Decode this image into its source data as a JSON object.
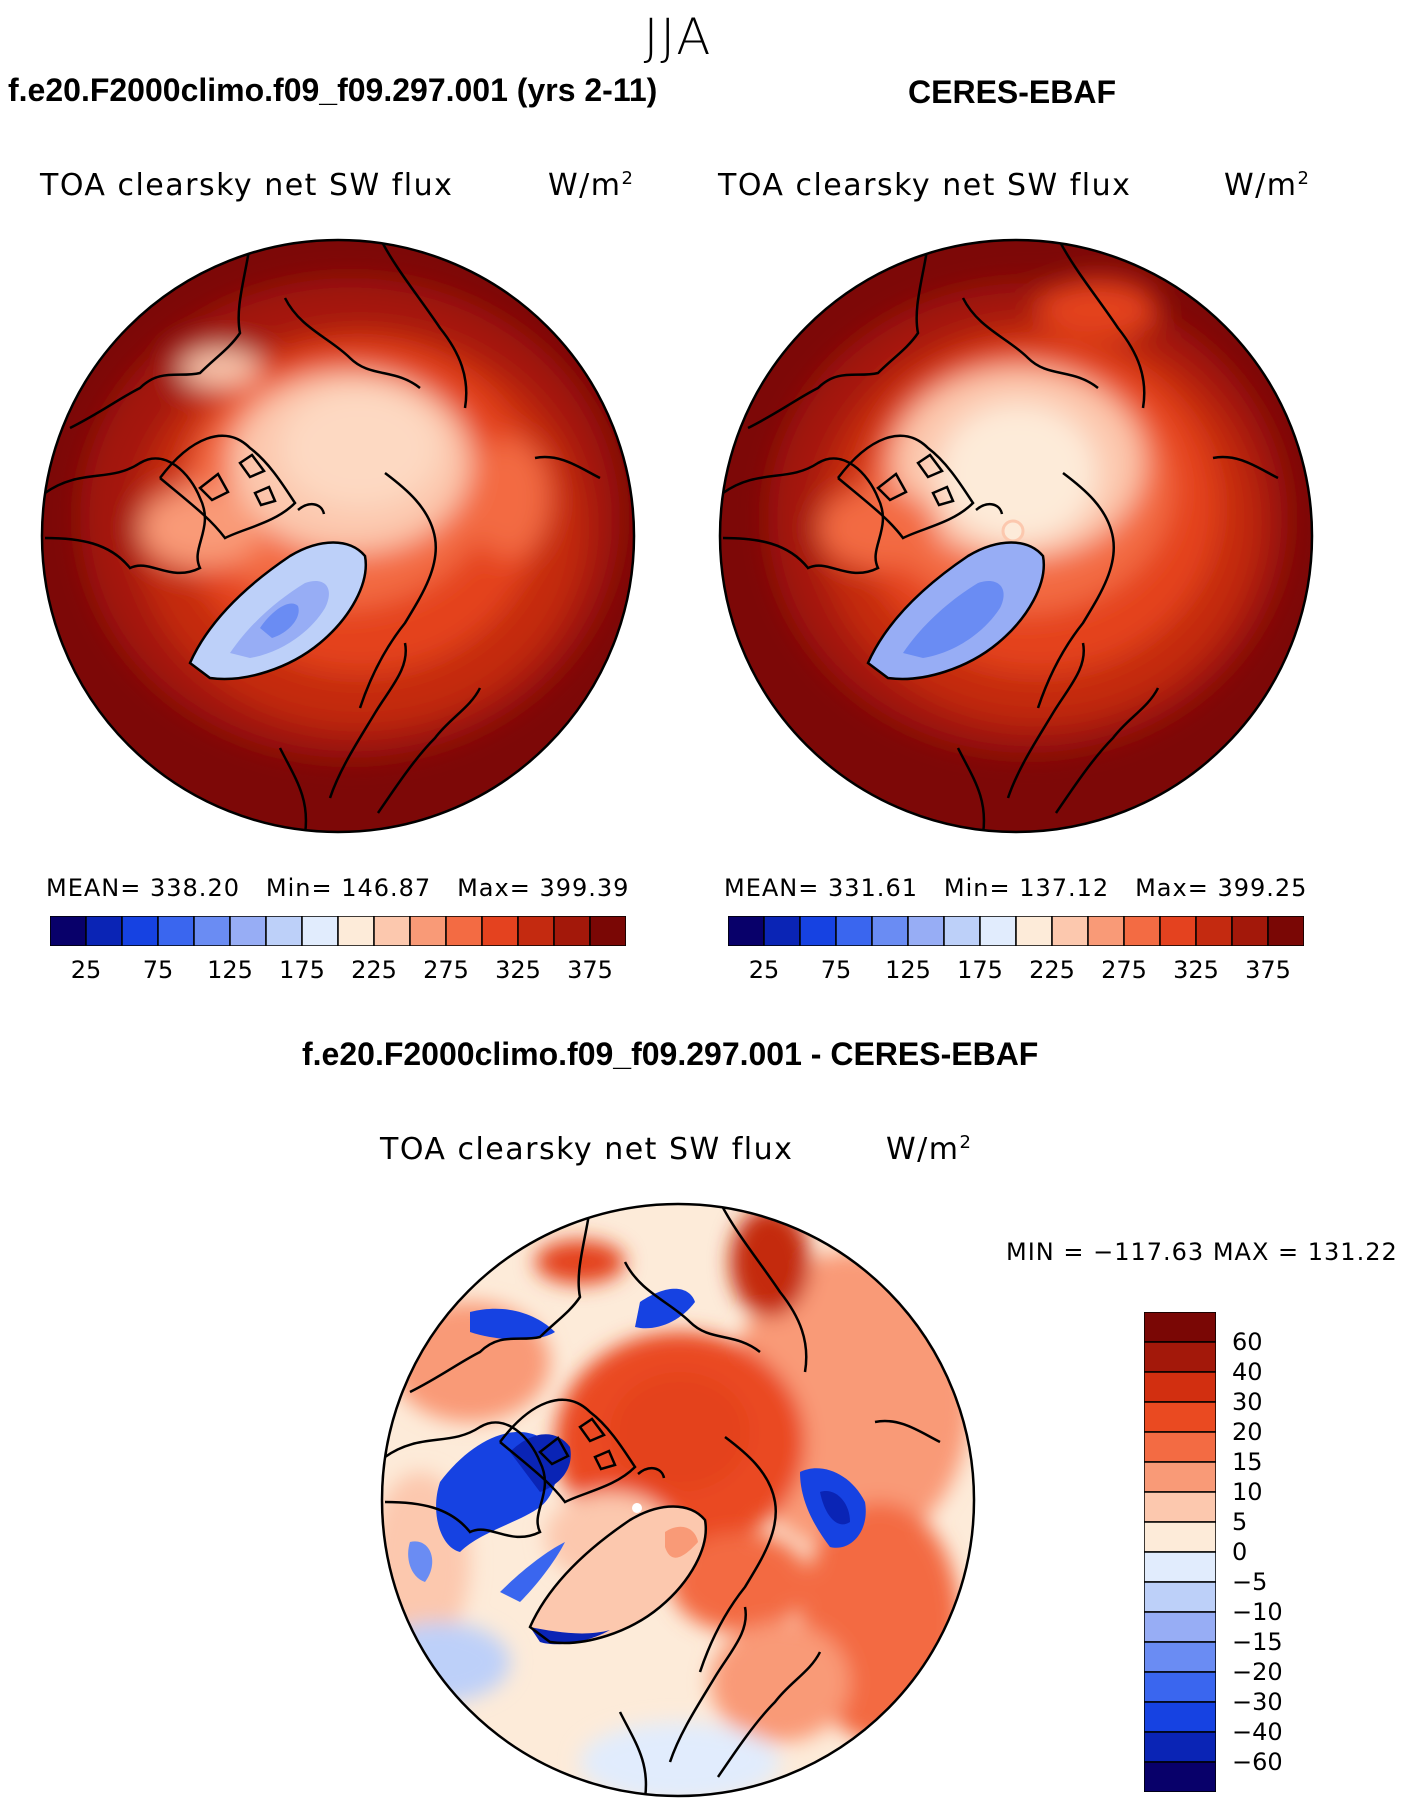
{
  "season": "JJA",
  "panel_left": {
    "case_title": "f.e20.F2000climo.f09_f09.297.001 (yrs 2-11)",
    "variable": "TOA clearsky net SW flux",
    "units": "W/m",
    "units_sup": "2",
    "stats": {
      "mean_label": "MEAN=",
      "mean": "338.20",
      "min_label": "Min=",
      "min": "146.87",
      "max_label": "Max=",
      "max": "399.39"
    }
  },
  "panel_right": {
    "case_title": "CERES-EBAF",
    "variable": "TOA clearsky net SW flux",
    "units": "W/m",
    "units_sup": "2",
    "stats": {
      "mean_label": "MEAN=",
      "mean": "331.61",
      "min_label": "Min=",
      "min": "137.12",
      "max_label": "Max=",
      "max": "399.25"
    }
  },
  "panel_diff": {
    "case_title": "f.e20.F2000climo.f09_f09.297.001 - CERES-EBAF",
    "variable": "TOA clearsky net SW flux",
    "units": "W/m",
    "units_sup": "2",
    "minmax": "MIN = −117.63 MAX = 131.22"
  },
  "abs_colorbar": {
    "colors": [
      "#08006a",
      "#0a24b5",
      "#1642e2",
      "#3a66ef",
      "#6a8cf3",
      "#97adf5",
      "#bdd0f9",
      "#e1ecfd",
      "#fdebd9",
      "#fcc8ae",
      "#f99a77",
      "#f36b43",
      "#e4421f",
      "#c42a10",
      "#a3180a",
      "#7a0705"
    ],
    "tick_labels": [
      "25",
      "75",
      "125",
      "175",
      "225",
      "275",
      "325",
      "375"
    ]
  },
  "diff_colorbar": {
    "colors": [
      "#7a0705",
      "#a3180a",
      "#d22f10",
      "#ea4a21",
      "#f36b43",
      "#f99a77",
      "#fcc8ae",
      "#fdebd9",
      "#e1ecfd",
      "#bdd0f9",
      "#97adf5",
      "#6a8cf3",
      "#3a66ef",
      "#1642e2",
      "#0a24b5",
      "#08006a"
    ],
    "tick_labels": [
      "60",
      "40",
      "30",
      "20",
      "15",
      "10",
      "5",
      "0",
      "−5",
      "−10",
      "−15",
      "−20",
      "−30",
      "−40",
      "−60"
    ]
  }
}
